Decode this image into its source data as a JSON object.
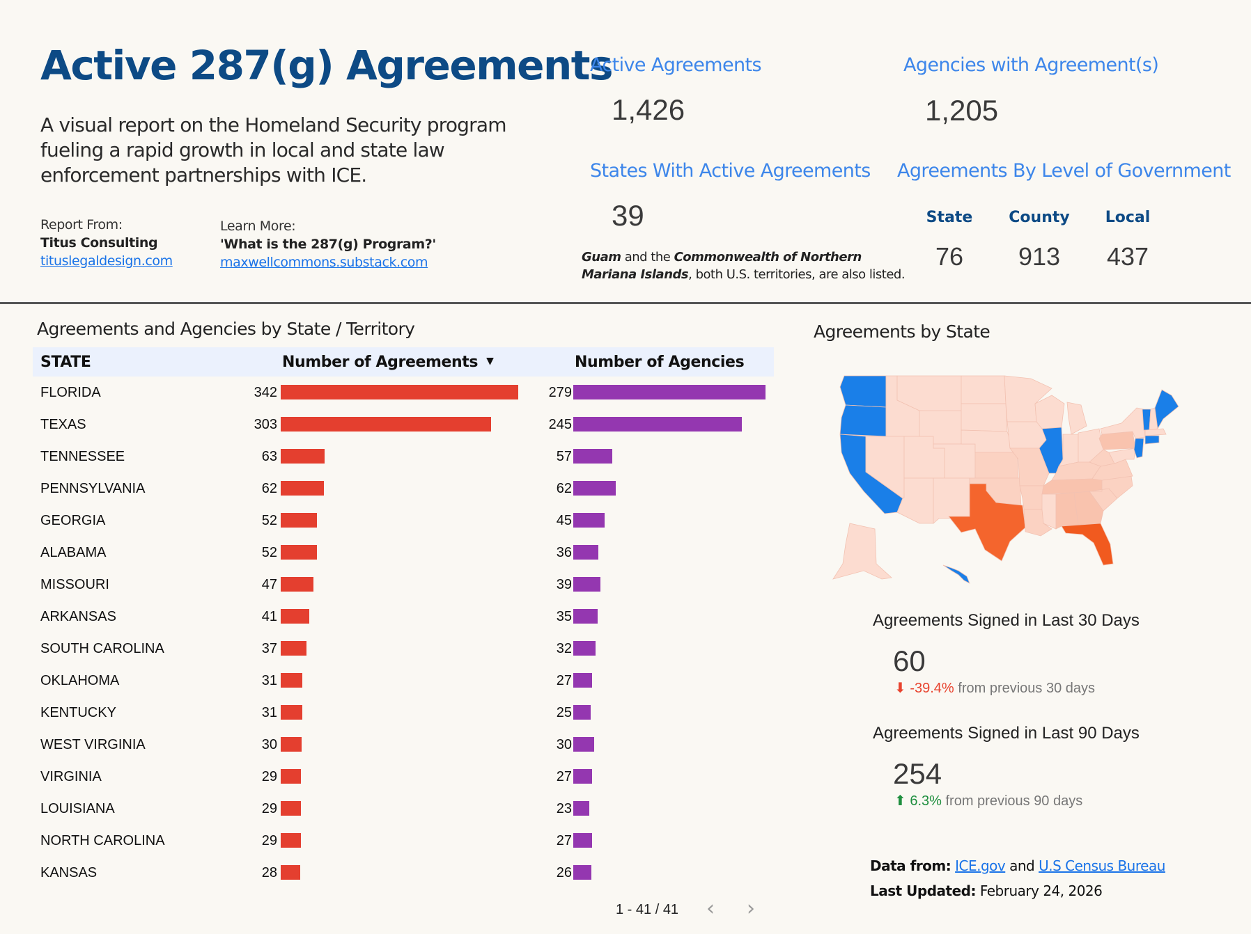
{
  "header": {
    "title": "Active 287(g) Agreements",
    "subtitle": "A visual report on the Homeland Security program fueling a rapid growth in local and state law enforcement partnerships with ICE.",
    "report_from": {
      "label": "Report From:",
      "org": "Titus Consulting",
      "link": "tituslegaldesign.com"
    },
    "learn_more": {
      "label": "Learn More:",
      "title": "'What is the 287(g) Program?'",
      "link": "maxwellcommons.substack.com"
    }
  },
  "kpis": {
    "active_agreements": {
      "label": "Active Agreements",
      "value": "1,426"
    },
    "agencies": {
      "label": "Agencies with Agreement(s)",
      "value": "1,205"
    },
    "states": {
      "label": "States With Active Agreements",
      "value": "39"
    },
    "territory_note": {
      "guam": "Guam",
      "mid": " and the ",
      "cnmi": "Commonwealth of Northern Mariana Islands",
      "tail": ", both U.S. territories, are also listed."
    },
    "by_level": {
      "label": "Agreements By Level of Government",
      "state_label": "State",
      "state_value": "76",
      "county_label": "County",
      "county_value": "913",
      "local_label": "Local",
      "local_value": "437"
    }
  },
  "table": {
    "title": "Agreements and Agencies by State / Territory",
    "columns": [
      "STATE",
      "Number of Agreements",
      "Number of Agencies"
    ],
    "sort_indicator": "▼",
    "colors": {
      "agreements": "#e43f2f",
      "agencies": "#9437b0"
    },
    "rows": [
      {
        "state": "FLORIDA",
        "agreements": 342,
        "agencies": 279
      },
      {
        "state": "TEXAS",
        "agreements": 303,
        "agencies": 245
      },
      {
        "state": "TENNESSEE",
        "agreements": 63,
        "agencies": 57
      },
      {
        "state": "PENNSYLVANIA",
        "agreements": 62,
        "agencies": 62
      },
      {
        "state": "GEORGIA",
        "agreements": 52,
        "agencies": 45
      },
      {
        "state": "ALABAMA",
        "agreements": 52,
        "agencies": 36
      },
      {
        "state": "MISSOURI",
        "agreements": 47,
        "agencies": 39
      },
      {
        "state": "ARKANSAS",
        "agreements": 41,
        "agencies": 35
      },
      {
        "state": "SOUTH CAROLINA",
        "agreements": 37,
        "agencies": 32
      },
      {
        "state": "OKLAHOMA",
        "agreements": 31,
        "agencies": 27
      },
      {
        "state": "KENTUCKY",
        "agreements": 31,
        "agencies": 25
      },
      {
        "state": "WEST VIRGINIA",
        "agreements": 30,
        "agencies": 30
      },
      {
        "state": "VIRGINIA",
        "agreements": 29,
        "agencies": 27
      },
      {
        "state": "LOUISIANA",
        "agreements": 29,
        "agencies": 23
      },
      {
        "state": "NORTH CAROLINA",
        "agreements": 29,
        "agencies": 27
      },
      {
        "state": "KANSAS",
        "agreements": 28,
        "agencies": 26
      }
    ],
    "pagination": {
      "text": "1 - 41 / 41",
      "prev_icon": "‹",
      "next_icon": "›"
    }
  },
  "map": {
    "title": "Agreements by State",
    "colors": {
      "none": "#1a7fe8",
      "low": "#fcdcd0",
      "mid": "#f9c3ae",
      "high": "#f4652d"
    }
  },
  "stats": {
    "last30": {
      "label": "Agreements Signed in Last 30 Days",
      "value": "60",
      "delta": "-39.4%",
      "delta_text": " from previous 30 days",
      "direction": "down"
    },
    "last90": {
      "label": "Agreements Signed in Last 90 Days",
      "value": "254",
      "delta": "6.3%",
      "delta_text": " from previous 90 days",
      "direction": "up"
    }
  },
  "footer": {
    "data_from_label": "Data from:",
    "source1": "ICE.gov",
    "and": " and ",
    "source2": "U.S Census Bureau",
    "updated_label": "Last Updated:",
    "updated_value": " February 24, 2026"
  }
}
